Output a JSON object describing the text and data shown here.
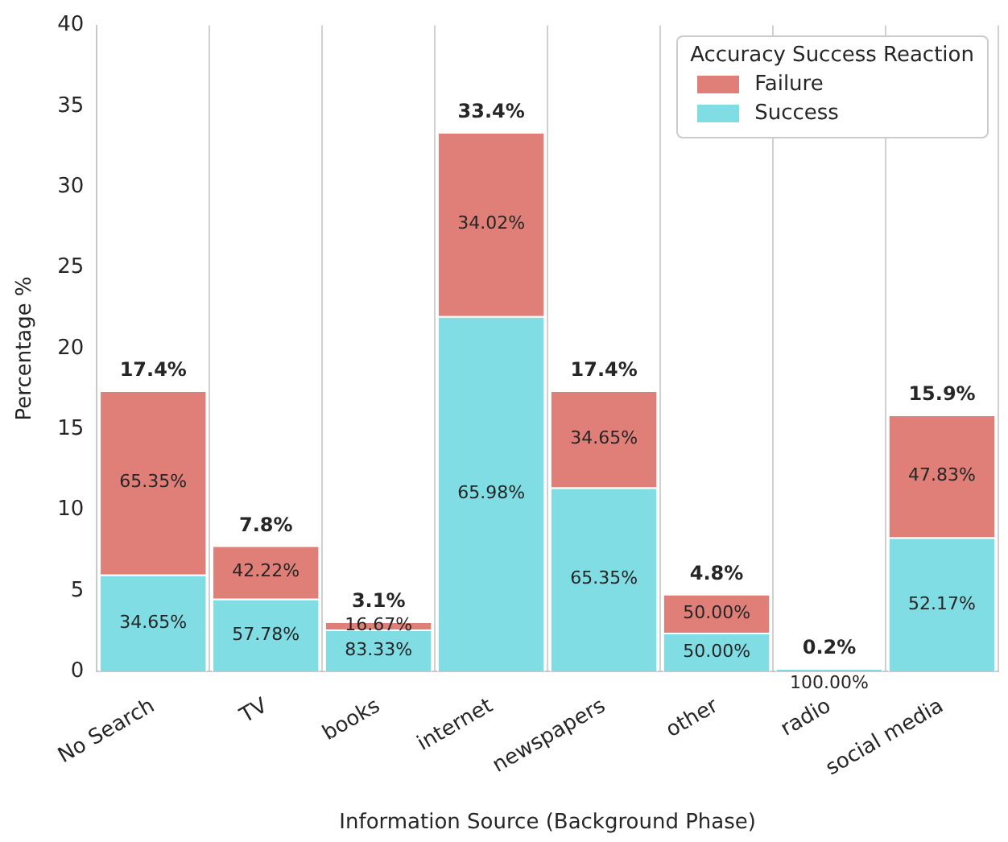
{
  "chart_data": {
    "type": "bar",
    "stacked": true,
    "xlabel": "Information Source (Background Phase)",
    "ylabel": "Percentage %",
    "legend_title": "Accuracy Success Reaction",
    "categories": [
      "No Search",
      "TV",
      "books",
      "internet",
      "newspapers",
      "other",
      "radio",
      "social media"
    ],
    "series": [
      {
        "name": "Success",
        "color": "#7fdde3",
        "values": [
          6.0,
          4.5,
          2.6,
          22.0,
          11.4,
          2.4,
          0.2,
          8.3
        ]
      },
      {
        "name": "Failure",
        "color": "#e07f78",
        "values": [
          11.4,
          3.3,
          0.5,
          11.4,
          6.0,
          2.4,
          0,
          7.6
        ]
      }
    ],
    "totals": [
      "17.4%",
      "7.8%",
      "3.1%",
      "33.4%",
      "17.4%",
      "4.8%",
      "0.2%",
      "15.9%"
    ],
    "annotations": [
      "34.65%",
      "65.35%",
      "57.78%",
      "42.22%",
      "83.33%",
      "16.67%",
      "65.98%",
      "34.02%",
      "65.35%",
      "34.65%",
      "50.00%",
      "50.00%",
      "100.00%",
      "52.17%",
      "47.83%"
    ],
    "ylim": [
      0,
      40
    ],
    "yticks": [
      0,
      5,
      10,
      15,
      20,
      25,
      30,
      35,
      40
    ],
    "grid": "x",
    "legend": "top right"
  }
}
